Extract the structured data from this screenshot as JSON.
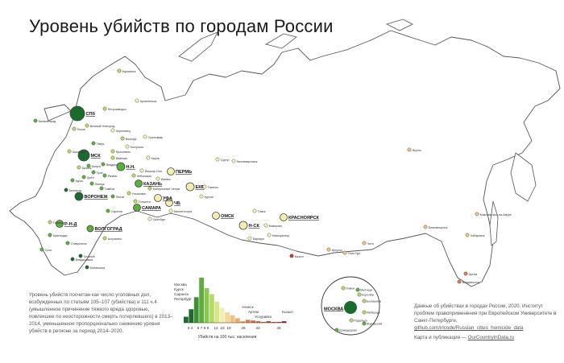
{
  "title": "Уровень убийств по городам России",
  "colors": {
    "land_outline": "#555555",
    "sea": "#ffffff",
    "very_low": "#1b6b2f",
    "low": "#5cae3e",
    "mid_low": "#b6d96a",
    "mid": "#f3eeb0",
    "mid_high": "#f2c283",
    "high": "#e07a4a",
    "very_high": "#c0392b"
  },
  "cities": [
    {
      "name": "Мурманск",
      "level": "mid_low",
      "big": false
    },
    {
      "name": "Архангельск",
      "level": "mid",
      "big": false
    },
    {
      "name": "СПб",
      "level": "very_low",
      "big": true
    },
    {
      "name": "Калининград",
      "level": "low",
      "big": false
    },
    {
      "name": "Петрозаводск",
      "level": "mid_low",
      "big": false
    },
    {
      "name": "Великий Новгород",
      "level": "mid_low",
      "big": false
    },
    {
      "name": "Череповец",
      "level": "mid",
      "big": false
    },
    {
      "name": "Сыктывкар",
      "level": "mid",
      "big": false
    },
    {
      "name": "Псков",
      "level": "mid_low",
      "big": false
    },
    {
      "name": "Тверь",
      "level": "low",
      "big": false
    },
    {
      "name": "Вологда",
      "level": "mid_low",
      "big": false
    },
    {
      "name": "Ярославль",
      "level": "mid_low",
      "big": false
    },
    {
      "name": "МСК",
      "level": "very_low",
      "big": true
    },
    {
      "name": "Кострома",
      "level": "mid",
      "big": false
    },
    {
      "name": "Иваново",
      "level": "mid_low",
      "big": false
    },
    {
      "name": "Смоленск",
      "level": "mid_low",
      "big": false
    },
    {
      "name": "Владимир",
      "level": "low",
      "big": false
    },
    {
      "name": "Н.Н.",
      "level": "low",
      "big": true
    },
    {
      "name": "Киров",
      "level": "mid",
      "big": false
    },
    {
      "name": "Брянск",
      "level": "mid_low",
      "big": false
    },
    {
      "name": "Калуга",
      "level": "low",
      "big": false
    },
    {
      "name": "Тула",
      "level": "low",
      "big": false
    },
    {
      "name": "Рязань",
      "level": "low",
      "big": false
    },
    {
      "name": "Чебоксары",
      "level": "mid_low",
      "big": false
    },
    {
      "name": "Йошкар-Ола",
      "level": "mid",
      "big": false
    },
    {
      "name": "Пермь",
      "level": "mid",
      "big": true
    },
    {
      "name": "Ижевск",
      "level": "mid",
      "big": false
    },
    {
      "name": "Курск",
      "level": "low",
      "big": false
    },
    {
      "name": "Орёл",
      "level": "low",
      "big": false
    },
    {
      "name": "Липецк",
      "level": "low",
      "big": false
    },
    {
      "name": "Тамбов",
      "level": "low",
      "big": false
    },
    {
      "name": "Казань",
      "level": "low",
      "big": true
    },
    {
      "name": "Набережные Челны",
      "level": "mid_low",
      "big": false
    },
    {
      "name": "Белгород",
      "level": "very_low",
      "big": false
    },
    {
      "name": "Воронеж",
      "level": "very_low",
      "big": true
    },
    {
      "name": "Пенза",
      "level": "low",
      "big": false
    },
    {
      "name": "Ульяновск",
      "level": "mid_low",
      "big": false
    },
    {
      "name": "Тольятти",
      "level": "mid_low",
      "big": false
    },
    {
      "name": "ЕКБ",
      "level": "mid",
      "big": true
    },
    {
      "name": "Тюмень",
      "level": "mid",
      "big": false
    },
    {
      "name": "Курган",
      "level": "mid",
      "big": false
    },
    {
      "name": "ЧЕБ",
      "level": "mid",
      "big": true
    },
    {
      "name": "Саратов",
      "level": "low",
      "big": false
    },
    {
      "name": "Самара",
      "level": "low",
      "big": true
    },
    {
      "name": "Оренбург",
      "level": "mid",
      "big": false
    },
    {
      "name": "Уфа",
      "level": "mid",
      "big": true
    },
    {
      "name": "Магнитогорск",
      "level": "mid",
      "big": false
    },
    {
      "name": "Волгоград",
      "level": "low",
      "big": true
    },
    {
      "name": "Ростов-на-Дону",
      "level": "low",
      "big": true
    },
    {
      "name": "Таганрог",
      "level": "mid_low",
      "big": false
    },
    {
      "name": "Краснодар",
      "level": "low",
      "big": false
    },
    {
      "name": "Астрахань",
      "level": "mid_low",
      "big": false
    },
    {
      "name": "Ставрополь",
      "level": "low",
      "big": false
    },
    {
      "name": "Владикавказ",
      "level": "very_low",
      "big": false
    },
    {
      "name": "Махачкала",
      "level": "very_low",
      "big": false
    },
    {
      "name": "Грозный",
      "level": "very_low",
      "big": false
    },
    {
      "name": "Сочи",
      "level": "low",
      "big": false
    },
    {
      "name": "Омск",
      "level": "mid",
      "big": true
    },
    {
      "name": "Томск",
      "level": "mid",
      "big": false
    },
    {
      "name": "Н-СК",
      "level": "mid",
      "big": true
    },
    {
      "name": "Барнаул",
      "level": "mid",
      "big": false
    },
    {
      "name": "Кемерово",
      "level": "mid",
      "big": false
    },
    {
      "name": "Новокузнецк",
      "level": "mid",
      "big": false
    },
    {
      "name": "Красноярск",
      "level": "mid",
      "big": true
    },
    {
      "name": "Иркутск",
      "level": "mid_high",
      "big": false
    },
    {
      "name": "Улан-Удэ",
      "level": "mid_high",
      "big": false
    },
    {
      "name": "Чита",
      "level": "mid_high",
      "big": false
    },
    {
      "name": "Якутск",
      "level": "mid_high",
      "big": false
    },
    {
      "name": "Сургут",
      "level": "mid",
      "big": false
    },
    {
      "name": "Нижневартовск",
      "level": "mid",
      "big": false
    },
    {
      "name": "Комсомольск-на-Амуре",
      "level": "mid_high",
      "big": false
    },
    {
      "name": "Хабаровск",
      "level": "mid_high",
      "big": false
    },
    {
      "name": "Благовещенск",
      "level": "mid_high",
      "big": false
    },
    {
      "name": "Владивосток",
      "level": "high",
      "big": false
    },
    {
      "name": "Артем",
      "level": "high",
      "big": false
    },
    {
      "name": "Кызыл",
      "level": "very_high",
      "big": false
    }
  ],
  "legend": {
    "low_group": [
      "Москва",
      "Курск",
      "Саранск",
      "Петербург"
    ],
    "mid_group": [
      "Ачинск",
      "Артем",
      "Уссурийск"
    ],
    "high_label": "Кызыл",
    "tick_labels": [
      "3",
      "4",
      "6",
      "7",
      "8",
      "9",
      "12",
      "15",
      "19",
      "25",
      "33",
      "45"
    ],
    "xlabel": "Убийств на 100 тыс. населения",
    "histogram": [
      8,
      18,
      34,
      60,
      46,
      38,
      28,
      20,
      14,
      10,
      6,
      2,
      4,
      3,
      2,
      1,
      2,
      1,
      1,
      2
    ]
  },
  "inset": {
    "labels": [
      "Химки",
      "Мытищи",
      "Балашиха",
      "МОСКВА",
      "Подольск",
      "Домодедово",
      "Люберцы",
      "Жуковский",
      "Королёв"
    ]
  },
  "notes": {
    "left": "Уровень убийств посчитан как число уголовных дел, возбужденных по статьям 105–107 (убийства) и 111 ч.4 (умышленное причинение тяжкого вреда здоровью, повлекшее по неосторожности смерть потерпевшего) в 2013–2014, уменьшенное пропорционально снижению уровня убийств в регионе за период 2014–2020.",
    "right_1": "Данные об убийствах в городах России, 2020. Институт проблем правоприменения при Европейском Университете в Санкт-Петербурге,",
    "right_link": "github.com/irlcode/Russian_cities_homicide_data",
    "credit_prefix": "Карта и публикация — ",
    "credit_link": "OurCountryInData.ru"
  }
}
